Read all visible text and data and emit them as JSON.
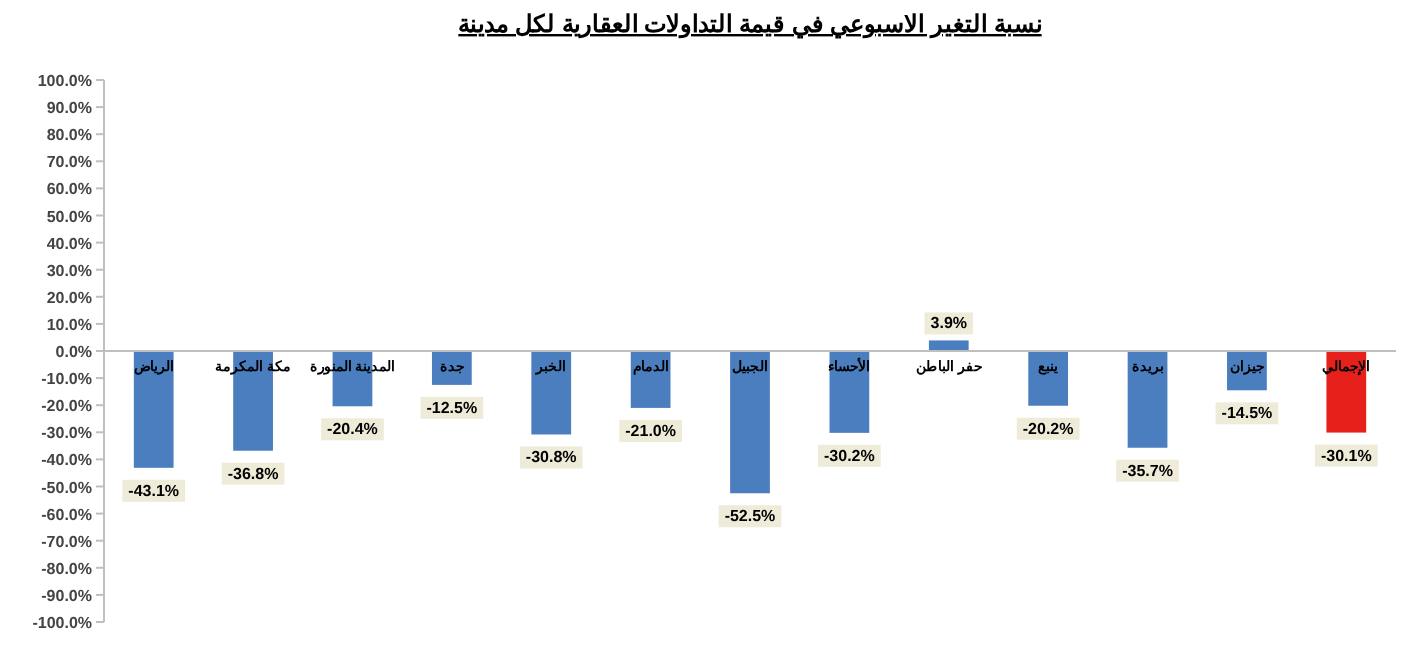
{
  "chart_data": {
    "type": "bar",
    "title": "نسبة التغير الاسبوعي في قيمة التداولات العقارية لكل مدينة",
    "categories": [
      "الرياض",
      "مكة المكرمة",
      "المدينة المنورة",
      "جدة",
      "الخبر",
      "الدمام",
      "الجبيل",
      "الأحساء",
      "حفر الباطن",
      "ينبع",
      "بريدة",
      "جيزان",
      "الإجمالي"
    ],
    "values": [
      -43.1,
      -36.8,
      -20.4,
      -12.5,
      -30.8,
      -21.0,
      -52.5,
      -30.2,
      3.9,
      -20.2,
      -35.7,
      -14.5,
      -30.1
    ],
    "colors": [
      "#4a7ebf",
      "#4a7ebf",
      "#4a7ebf",
      "#4a7ebf",
      "#4a7ebf",
      "#4a7ebf",
      "#4a7ebf",
      "#4a7ebf",
      "#4a7ebf",
      "#4a7ebf",
      "#4a7ebf",
      "#4a7ebf",
      "#e8201c"
    ],
    "value_labels": [
      "-43.1%",
      "-36.8%",
      "-20.4%",
      "-12.5%",
      "-30.8%",
      "-21.0%",
      "-52.5%",
      "-30.2%",
      "3.9%",
      "-20.2%",
      "-35.7%",
      "-14.5%",
      "-30.1%"
    ],
    "ylim": [
      -100,
      100
    ],
    "yticks": [
      {
        "value": -100,
        "label": "-100.0%"
      },
      {
        "value": -90,
        "label": "-90.0%"
      },
      {
        "value": -80,
        "label": "-80.0%"
      },
      {
        "value": -70,
        "label": "-70.0%"
      },
      {
        "value": -60,
        "label": "-60.0%"
      },
      {
        "value": -50,
        "label": "-50.0%"
      },
      {
        "value": -40,
        "label": "-40.0%"
      },
      {
        "value": -30,
        "label": "-30.0%"
      },
      {
        "value": -20,
        "label": "-20.0%"
      },
      {
        "value": -10,
        "label": "-10.0%"
      },
      {
        "value": 0,
        "label": "0.0%"
      },
      {
        "value": 10,
        "label": "10.0%"
      },
      {
        "value": 20,
        "label": "20.0%"
      },
      {
        "value": 30,
        "label": "30.0%"
      },
      {
        "value": 40,
        "label": "40.0%"
      },
      {
        "value": 50,
        "label": "50.0%"
      },
      {
        "value": 60,
        "label": "60.0%"
      },
      {
        "value": 70,
        "label": "70.0%"
      },
      {
        "value": 80,
        "label": "80.0%"
      },
      {
        "value": 90,
        "label": "90.0%"
      },
      {
        "value": 100,
        "label": "100.0%"
      }
    ]
  }
}
